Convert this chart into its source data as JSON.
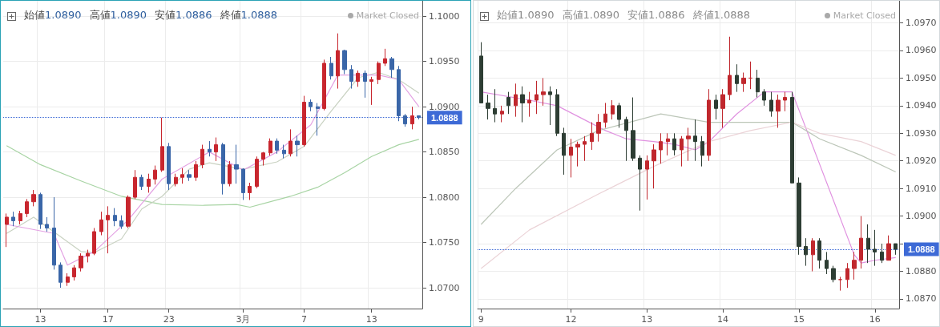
{
  "chart_data": [
    {
      "type": "candlestick",
      "categories": [
        null,
        null,
        null,
        null,
        null,
        "13",
        null,
        null,
        null,
        null,
        null,
        null,
        null,
        null,
        null,
        "17",
        null,
        null,
        null,
        null,
        null,
        null,
        null,
        null,
        "23",
        null,
        null,
        null,
        null,
        null,
        null,
        null,
        null,
        null,
        null,
        "3月",
        null,
        null,
        null,
        null,
        null,
        null,
        null,
        null,
        "7",
        null,
        null,
        null,
        null,
        null,
        null,
        null,
        null,
        null,
        "13",
        null,
        null,
        null,
        null,
        null,
        null,
        null
      ],
      "ohlc": [
        [
          1.077,
          1.0782,
          1.0745,
          1.0778
        ],
        [
          1.0778,
          1.0784,
          1.0768,
          1.0774
        ],
        [
          1.0774,
          1.0785,
          1.077,
          1.0782
        ],
        [
          1.0782,
          1.0798,
          1.0778,
          1.0795
        ],
        [
          1.0795,
          1.0808,
          1.079,
          1.0803
        ],
        [
          1.0803,
          1.0805,
          1.0765,
          1.077
        ],
        [
          1.077,
          1.0778,
          1.0762,
          1.0766
        ],
        [
          1.0766,
          1.08,
          1.072,
          1.0725
        ],
        [
          1.0725,
          1.0728,
          1.07,
          1.0706
        ],
        [
          1.0706,
          1.0716,
          1.0702,
          1.0712
        ],
        [
          1.0712,
          1.0725,
          1.0708,
          1.0722
        ],
        [
          1.0722,
          1.0738,
          1.0718,
          1.0735
        ],
        [
          1.0735,
          1.0742,
          1.0728,
          1.0738
        ],
        [
          1.0738,
          1.0766,
          1.0736,
          1.0762
        ],
        [
          1.0762,
          1.0784,
          1.0758,
          1.0775
        ],
        [
          1.0775,
          1.079,
          1.0738,
          1.078
        ],
        [
          1.078,
          1.0788,
          1.0768,
          1.0774
        ],
        [
          1.0774,
          1.078,
          1.0765,
          1.0768
        ],
        [
          1.0768,
          1.0802,
          1.0766,
          1.08
        ],
        [
          1.08,
          1.083,
          1.0798,
          1.0822
        ],
        [
          1.0822,
          1.0825,
          1.0808,
          1.0812
        ],
        [
          1.0812,
          1.0826,
          1.0805,
          1.082
        ],
        [
          1.082,
          1.0835,
          1.0814,
          1.083
        ],
        [
          1.083,
          1.0888,
          1.0828,
          1.0856
        ],
        [
          1.0856,
          1.086,
          1.0808,
          1.0815
        ],
        [
          1.0815,
          1.0826,
          1.0812,
          1.0822
        ],
        [
          1.0822,
          1.0832,
          1.0815,
          1.0825
        ],
        [
          1.0825,
          1.083,
          1.0818,
          1.0822
        ],
        [
          1.0822,
          1.084,
          1.0818,
          1.0836
        ],
        [
          1.0836,
          1.0858,
          1.0832,
          1.0853
        ],
        [
          1.0853,
          1.0862,
          1.0845,
          1.085
        ],
        [
          1.085,
          1.0866,
          1.084,
          1.0858
        ],
        [
          1.0858,
          1.086,
          1.0803,
          1.0815
        ],
        [
          1.0815,
          1.084,
          1.0812,
          1.0836
        ],
        [
          1.0836,
          1.0858,
          1.0815,
          1.0831
        ],
        [
          1.0831,
          1.0832,
          1.0797,
          1.0805
        ],
        [
          1.0805,
          1.0816,
          1.0797,
          1.0812
        ],
        [
          1.0812,
          1.0845,
          1.081,
          1.0842
        ],
        [
          1.0842,
          1.085,
          1.0835,
          1.0849
        ],
        [
          1.0849,
          1.0865,
          1.0846,
          1.0862
        ],
        [
          1.0862,
          1.0865,
          1.0848,
          1.0852
        ],
        [
          1.0852,
          1.0858,
          1.0843,
          1.0848
        ],
        [
          1.0848,
          1.0875,
          1.0845,
          1.0862
        ],
        [
          1.0862,
          1.0868,
          1.0845,
          1.0858
        ],
        [
          1.0858,
          1.0912,
          1.0856,
          1.0905
        ],
        [
          1.0905,
          1.0908,
          1.0895,
          1.09
        ],
        [
          1.09,
          1.0904,
          1.0868,
          1.0898
        ],
        [
          1.0898,
          1.0952,
          1.0896,
          1.0948
        ],
        [
          1.0948,
          1.0955,
          1.093,
          1.0934
        ],
        [
          1.0934,
          1.0981,
          1.092,
          1.0962
        ],
        [
          1.0962,
          1.0963,
          1.0936,
          1.0941
        ],
        [
          1.0941,
          1.0946,
          1.092,
          1.0928
        ],
        [
          1.0928,
          1.094,
          1.0922,
          1.0937
        ],
        [
          1.0937,
          1.094,
          1.091,
          1.0928
        ],
        [
          1.0928,
          1.0933,
          1.0902,
          1.093
        ],
        [
          1.093,
          1.095,
          1.0925,
          1.0948
        ],
        [
          1.0948,
          1.0964,
          1.0945,
          1.0953
        ],
        [
          1.0953,
          1.0955,
          1.0932,
          1.0941
        ],
        [
          1.0941,
          1.0945,
          1.0884,
          1.089
        ],
        [
          1.089,
          1.0892,
          1.0878,
          1.0881
        ],
        [
          1.0881,
          1.09,
          1.0875,
          1.089
        ],
        [
          1.089,
          1.089,
          1.0886,
          1.0888
        ]
      ],
      "colors": [
        "#c8262e",
        "#3a66a8",
        "#c8262e",
        "#c8262e",
        "#c8262e",
        "#3a66a8",
        "#3a66a8",
        "#3a66a8",
        "#3a66a8",
        "#c8262e",
        "#c8262e",
        "#c8262e",
        "#c8262e",
        "#c8262e",
        "#c8262e",
        "#c8262e",
        "#3a66a8",
        "#3a66a8",
        "#c8262e",
        "#c8262e",
        "#3a66a8",
        "#c8262e",
        "#c8262e",
        "#c8262e",
        "#3a66a8",
        "#c8262e",
        "#c8262e",
        "#3a66a8",
        "#c8262e",
        "#c8262e",
        "#3a66a8",
        "#c8262e",
        "#3a66a8",
        "#c8262e",
        "#3a66a8",
        "#3a66a8",
        "#c8262e",
        "#c8262e",
        "#c8262e",
        "#c8262e",
        "#3a66a8",
        "#3a66a8",
        "#c8262e",
        "#3a66a8",
        "#c8262e",
        "#3a66a8",
        "#3a66a8",
        "#c8262e",
        "#3a66a8",
        "#c8262e",
        "#3a66a8",
        "#3a66a8",
        "#c8262e",
        "#3a66a8",
        "#c8262e",
        "#c8262e",
        "#c8262e",
        "#3a66a8",
        "#3a66a8",
        "#3a66a8",
        "#c8262e",
        "#3a66a8"
      ],
      "series": [
        {
          "type": "line",
          "color": "#a8d4a4",
          "values": [
            1.0857,
            null,
            null,
            null,
            null,
            1.0836,
            null,
            null,
            null,
            null,
            null,
            1.0818,
            null,
            null,
            null,
            null,
            null,
            1.0801,
            null,
            null,
            null,
            null,
            null,
            1.0792,
            null,
            null,
            null,
            null,
            null,
            1.0791,
            null,
            null,
            null,
            null,
            1.0792,
            null,
            1.0789,
            null,
            null,
            null,
            null,
            null,
            1.0801,
            null,
            null,
            null,
            1.0811,
            null,
            null,
            null,
            1.0827,
            null,
            null,
            null,
            1.0845,
            null,
            null,
            null,
            1.0858,
            null,
            null,
            1.0864
          ]
        },
        {
          "type": "line",
          "color": "#c9d2c2",
          "values": [
            1.076,
            null,
            null,
            null,
            1.0778,
            null,
            null,
            null,
            null,
            null,
            null,
            1.074,
            null,
            1.0739,
            null,
            null,
            null,
            1.0754,
            null,
            null,
            1.0787,
            null,
            null,
            1.0801,
            null,
            null,
            null,
            1.0831,
            null,
            null,
            1.0838,
            null,
            null,
            null,
            null,
            1.0831,
            null,
            null,
            null,
            null,
            1.0839,
            null,
            null,
            null,
            1.0856,
            null,
            null,
            null,
            1.0895,
            null,
            null,
            null,
            1.0932,
            null,
            null,
            1.0938,
            null,
            null,
            1.093,
            null,
            null,
            1.0915
          ]
        },
        {
          "type": "line",
          "color": "#e3a2e3",
          "values": [
            1.077,
            null,
            null,
            null,
            null,
            null,
            null,
            1.076,
            null,
            1.0725,
            null,
            null,
            null,
            1.074,
            null,
            null,
            null,
            null,
            1.0775,
            null,
            null,
            null,
            null,
            1.082,
            null,
            null,
            null,
            null,
            null,
            null,
            1.085,
            null,
            null,
            null,
            null,
            1.083,
            null,
            null,
            null,
            null,
            1.085,
            null,
            null,
            null,
            null,
            1.088,
            null,
            null,
            null,
            1.0935,
            null,
            null,
            null,
            null,
            null,
            1.0935,
            null,
            null,
            1.093,
            null,
            null,
            1.09
          ]
        }
      ],
      "ylim": [
        1.0677,
        1.1017
      ],
      "yticks": [
        {
          "value": 1.07,
          "label": "1.0700"
        },
        {
          "value": 1.075,
          "label": "1.0750"
        },
        {
          "value": 1.08,
          "label": "1.0800"
        },
        {
          "value": 1.085,
          "label": "1.0850"
        },
        {
          "value": 1.09,
          "label": "1.0900"
        },
        {
          "value": 1.095,
          "label": "1.0950"
        },
        {
          "value": 1.1,
          "label": "1.1000"
        }
      ],
      "grid": true,
      "marker": "none",
      "ref_lines": [
        {
          "axis": "y",
          "value": 1.0888,
          "label": "1.0888",
          "color": "#3d6ad6",
          "line_style": "dotted"
        }
      ],
      "annotations": [
        "始値1.0890",
        "高値1.0890",
        "安値1.0886",
        "終値1.0888",
        "Market Closed"
      ]
    },
    {
      "type": "candlestick",
      "categories": [
        "9",
        null,
        null,
        null,
        null,
        null,
        null,
        null,
        null,
        null,
        null,
        null,
        null,
        "12",
        null,
        null,
        null,
        null,
        null,
        null,
        null,
        null,
        null,
        null,
        "13",
        null,
        null,
        null,
        null,
        null,
        null,
        null,
        null,
        null,
        null,
        "14",
        null,
        null,
        null,
        null,
        null,
        null,
        null,
        null,
        null,
        null,
        "15",
        null,
        null,
        null,
        null,
        null,
        null,
        null,
        null,
        null,
        null,
        "16",
        null,
        null,
        null
      ],
      "ohlc": [
        [
          1.0958,
          1.0963,
          1.0941,
          1.0941
        ],
        [
          1.0941,
          1.0944,
          1.0935,
          1.0939
        ],
        [
          1.0939,
          1.0946,
          1.0934,
          1.0937
        ],
        [
          1.0937,
          1.094,
          1.0934,
          1.0938
        ],
        [
          1.0943,
          1.0945,
          1.0937,
          1.094
        ],
        [
          1.094,
          1.0948,
          1.0936,
          1.0944
        ],
        [
          1.0944,
          1.0947,
          1.0934,
          1.0941
        ],
        [
          1.0941,
          1.0945,
          1.0936,
          1.0942
        ],
        [
          1.0942,
          1.0949,
          1.0937,
          1.0944
        ],
        [
          1.0944,
          1.095,
          1.094,
          1.0945
        ],
        [
          1.0945,
          1.0947,
          1.0933,
          1.0944
        ],
        [
          1.0944,
          1.0946,
          1.0929,
          1.093
        ],
        [
          1.093,
          1.0932,
          1.0915,
          1.0922
        ],
        [
          1.0922,
          1.0928,
          1.0914,
          1.0925
        ],
        [
          1.0925,
          1.0927,
          1.0918,
          1.0926
        ],
        [
          1.0926,
          1.0929,
          1.092,
          1.0927
        ],
        [
          1.0927,
          1.0934,
          1.0924,
          1.093
        ],
        [
          1.093,
          1.0937,
          1.0927,
          1.0934
        ],
        [
          1.0934,
          1.0941,
          1.0932,
          1.0937
        ],
        [
          1.0937,
          1.0942,
          1.0935,
          1.094
        ],
        [
          1.094,
          1.0941,
          1.0932,
          1.0935
        ],
        [
          1.0935,
          1.0936,
          1.092,
          1.0931
        ],
        [
          1.0931,
          1.0943,
          1.092,
          1.0921
        ],
        [
          1.0921,
          1.0922,
          1.0902,
          1.0917
        ],
        [
          1.0917,
          1.0922,
          1.0906,
          1.092
        ],
        [
          1.092,
          1.0926,
          1.091,
          1.0924
        ],
        [
          1.0924,
          1.093,
          1.0919,
          1.0927
        ],
        [
          1.0927,
          1.093,
          1.0922,
          1.0928
        ],
        [
          1.0928,
          1.093,
          1.0922,
          1.0924
        ],
        [
          1.0924,
          1.0929,
          1.0918,
          1.0928
        ],
        [
          1.0928,
          1.0932,
          1.092,
          1.0929
        ],
        [
          1.0929,
          1.0935,
          1.092,
          1.0927
        ],
        [
          1.0927,
          1.0929,
          1.0918,
          1.0922
        ],
        [
          1.0922,
          1.0946,
          1.092,
          1.0942
        ],
        [
          1.0942,
          1.0944,
          1.0935,
          1.0939
        ],
        [
          1.0939,
          1.0946,
          1.0932,
          1.0944
        ],
        [
          1.0944,
          1.0965,
          1.0942,
          1.0951
        ],
        [
          1.0951,
          1.0955,
          1.0945,
          1.0948
        ],
        [
          1.0948,
          1.0952,
          1.0945,
          1.095
        ],
        [
          1.095,
          1.0956,
          1.0946,
          1.095
        ],
        [
          1.095,
          1.0953,
          1.0943,
          1.0945
        ],
        [
          1.0945,
          1.0946,
          1.094,
          1.0942
        ],
        [
          1.0942,
          1.0945,
          1.0936,
          1.0938
        ],
        [
          1.0938,
          1.0944,
          1.0932,
          1.0942
        ],
        [
          1.0942,
          1.0945,
          1.0938,
          1.0943
        ],
        [
          1.0943,
          1.0945,
          1.0912,
          1.0912
        ],
        [
          1.0912,
          1.0914,
          1.0886,
          1.0889
        ],
        [
          1.0889,
          1.0892,
          1.0882,
          1.0886
        ],
        [
          1.0886,
          1.0892,
          1.088,
          1.0891
        ],
        [
          1.0891,
          1.0892,
          1.0881,
          1.0884
        ],
        [
          1.0884,
          1.0887,
          1.0879,
          1.0881
        ],
        [
          1.0881,
          1.0882,
          1.0876,
          1.0877
        ],
        [
          1.0877,
          1.0878,
          1.0873,
          1.0877
        ],
        [
          1.0877,
          1.0883,
          1.0874,
          1.0881
        ],
        [
          1.0881,
          1.0887,
          1.0877,
          1.0884
        ],
        [
          1.0884,
          1.09,
          1.0881,
          1.0892
        ],
        [
          1.0892,
          1.0897,
          1.0883,
          1.0888
        ],
        [
          1.0888,
          1.0895,
          1.0882,
          1.0887
        ],
        [
          1.0887,
          1.089,
          1.0883,
          1.0884
        ],
        [
          1.0884,
          1.0893,
          1.0884,
          1.089
        ],
        [
          1.089,
          1.089,
          1.0886,
          1.0888
        ]
      ],
      "colors": [
        "#2d3d33",
        "#2d3d33",
        "#2d3d33",
        "#c0272d",
        "#2d3d33",
        "#c0272d",
        "#2d3d33",
        "#c0272d",
        "#c0272d",
        "#c0272d",
        "#2d3d33",
        "#2d3d33",
        "#2d3d33",
        "#c0272d",
        "#c0272d",
        "#c0272d",
        "#c0272d",
        "#c0272d",
        "#c0272d",
        "#c0272d",
        "#2d3d33",
        "#2d3d33",
        "#2d3d33",
        "#2d3d33",
        "#c0272d",
        "#c0272d",
        "#c0272d",
        "#c0272d",
        "#2d3d33",
        "#c0272d",
        "#c0272d",
        "#2d3d33",
        "#2d3d33",
        "#c0272d",
        "#2d3d33",
        "#c0272d",
        "#c0272d",
        "#2d3d33",
        "#c0272d",
        "#c0272d",
        "#2d3d33",
        "#2d3d33",
        "#2d3d33",
        "#c0272d",
        "#c0272d",
        "#2d3d33",
        "#2d3d33",
        "#2d3d33",
        "#c0272d",
        "#2d3d33",
        "#2d3d33",
        "#2d3d33",
        "#c0272d",
        "#c0272d",
        "#c0272d",
        "#c0272d",
        "#2d3d33",
        "#2d3d33",
        "#2d3d33",
        "#c0272d",
        "#2d3d33"
      ],
      "series": [
        {
          "type": "line",
          "color": "#e092e0",
          "values": [
            1.0945,
            null,
            null,
            null,
            null,
            null,
            null,
            1.0942,
            null,
            null,
            null,
            1.094,
            null,
            null,
            null,
            null,
            null,
            null,
            1.0931,
            null,
            null,
            1.0928,
            null,
            null,
            null,
            1.0927,
            null,
            null,
            1.0926,
            null,
            null,
            1.0924,
            null,
            1.0927,
            null,
            null,
            null,
            1.0937,
            null,
            null,
            null,
            1.0945,
            null,
            null,
            null,
            1.0945,
            null,
            null,
            null,
            null,
            null,
            null,
            null,
            null,
            1.0886,
            1.0883,
            null,
            1.0884,
            null,
            null,
            1.0885
          ]
        },
        {
          "type": "line",
          "color": "#bcc6b8",
          "values": [
            1.0897,
            null,
            null,
            null,
            null,
            1.091,
            null,
            null,
            null,
            null,
            null,
            1.0924,
            null,
            null,
            null,
            null,
            null,
            1.0931,
            null,
            null,
            null,
            null,
            null,
            null,
            null,
            null,
            1.0937,
            null,
            null,
            null,
            null,
            null,
            null,
            1.0934,
            null,
            null,
            null,
            null,
            null,
            1.0934,
            null,
            null,
            null,
            null,
            null,
            1.0934,
            null,
            null,
            null,
            1.0928,
            null,
            null,
            null,
            null,
            null,
            1.0922,
            null,
            null,
            null,
            null,
            1.0916
          ]
        },
        {
          "type": "line",
          "color": "#ebd3d7",
          "values": [
            1.0881,
            null,
            null,
            null,
            null,
            null,
            null,
            1.0895,
            null,
            null,
            null,
            null,
            null,
            null,
            null,
            null,
            null,
            1.0908,
            null,
            null,
            null,
            null,
            null,
            null,
            null,
            1.0918,
            null,
            null,
            null,
            null,
            null,
            null,
            null,
            1.0927,
            null,
            null,
            null,
            null,
            null,
            1.0931,
            null,
            null,
            null,
            null,
            null,
            1.0934,
            null,
            null,
            null,
            1.093,
            null,
            null,
            null,
            null,
            null,
            1.0927,
            null,
            null,
            null,
            null,
            1.0922
          ]
        }
      ],
      "ylim": [
        1.08665,
        1.0978
      ],
      "yticks": [
        {
          "value": 1.087,
          "label": "1.0870"
        },
        {
          "value": 1.088,
          "label": "1.0880"
        },
        {
          "value": 1.089,
          "label": null
        },
        {
          "value": 1.09,
          "label": "1.0900"
        },
        {
          "value": 1.091,
          "label": "1.0910"
        },
        {
          "value": 1.092,
          "label": "1.0920"
        },
        {
          "value": 1.093,
          "label": "1.0930"
        },
        {
          "value": 1.094,
          "label": "1.0940"
        },
        {
          "value": 1.095,
          "label": "1.0950"
        },
        {
          "value": 1.096,
          "label": "1.0960"
        },
        {
          "value": 1.097,
          "label": "1.0970"
        }
      ],
      "grid": true,
      "marker": "none",
      "ref_lines": [
        {
          "axis": "y",
          "value": 1.0888,
          "label": "1.0888",
          "color": "#3d6ad6",
          "line_style": "dotted"
        }
      ],
      "annotations": [
        "始値1.0890",
        "高値1.0890",
        "安値1.0886",
        "終値1.0888",
        "Market Closed"
      ]
    }
  ]
}
